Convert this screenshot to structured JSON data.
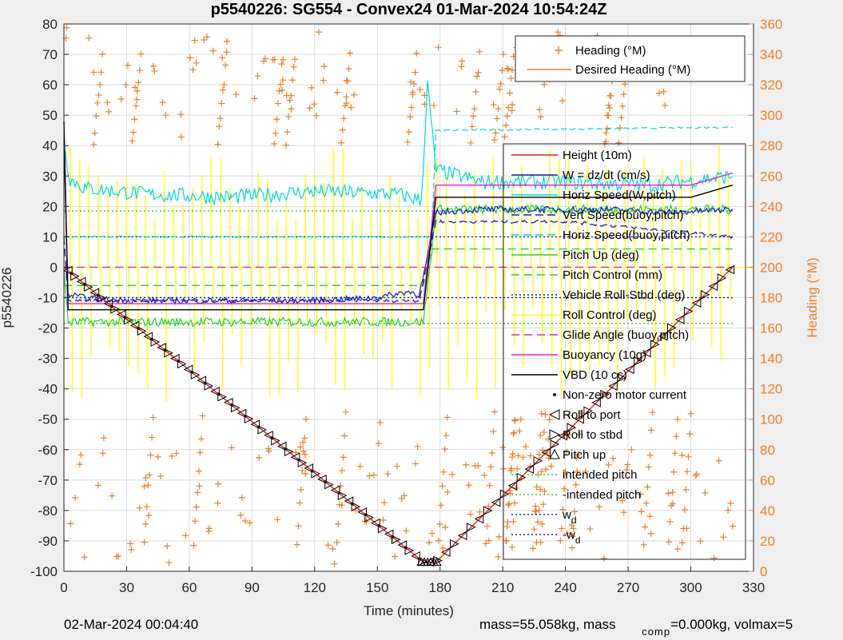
{
  "colors": {
    "background": "#efefef",
    "plot_background": "#ffffff",
    "grid": "#dcdcdc",
    "heading_axis": "#f07f28",
    "height": "#e02020",
    "w": "#1a1ad0",
    "horiz_speed": "#00d8d8",
    "pitch": "#2ad02a",
    "roll": "#ffff22",
    "glide": "#e020e0",
    "vbd": "#000000"
  },
  "chart_data": {
    "type": "line",
    "title": "p5540226: SG554 - Convex24 01-Mar-2024 10:54:24Z",
    "xlabel": "Time (minutes)",
    "ylabel": "p5540226",
    "y2label": "Heading (°M)",
    "xlim": [
      0,
      330
    ],
    "ylim": [
      -100,
      80
    ],
    "y2lim": [
      0,
      360
    ],
    "xticks": [
      "0",
      "30",
      "60",
      "90",
      "120",
      "150",
      "180",
      "210",
      "240",
      "270",
      "300",
      "330"
    ],
    "yticks": [
      "80",
      "70",
      "60",
      "50",
      "40",
      "30",
      "20",
      "10",
      "0",
      "-10",
      "-20",
      "-30",
      "-40",
      "-50",
      "-60",
      "-70",
      "-80",
      "-90",
      "-100"
    ],
    "y2ticks": [
      "360",
      "340",
      "320",
      "300",
      "280",
      "260",
      "240",
      "220",
      "200",
      "180",
      "160",
      "140",
      "120",
      "100",
      "80",
      "60",
      "40",
      "20",
      "0"
    ],
    "grid": true,
    "legend_heading": {
      "placement": "top-right",
      "entries": [
        "Heading (°M)",
        "Desired Heading (°M)"
      ]
    },
    "legend_main": {
      "placement": "right",
      "entries": [
        "Height (10m)",
        "W = dz/dt (cm/s)",
        "Horiz Speed(W,pitch)",
        "Vert Speed(buoy,pitch)",
        "Horiz Speed(buoy,pitch)",
        "Pitch Up (deg)",
        "Pitch Control (mm)",
        "Vehicle Roll-Stbd (deg)",
        "Roll Control (deg)",
        "Glide Angle (buoy,pitch)",
        "Buoyancy (10g)",
        "VBD (10 cc)",
        "Non-zero motor current",
        "Roll to port",
        "Roll to stbd",
        "Pitch up",
        "intended pitch",
        "-intended pitch",
        "w_d",
        "-w_d"
      ]
    },
    "series": [
      {
        "name": "Height (10m)",
        "x": [
          0,
          172,
          178,
          320
        ],
        "y": [
          0,
          -97,
          -97,
          0
        ]
      },
      {
        "name": "W = dz/dt (cm/s)",
        "x": [
          0,
          2,
          10,
          30,
          60,
          90,
          120,
          150,
          165,
          170,
          173,
          178,
          200,
          230,
          260,
          290,
          320
        ],
        "y": [
          40,
          -9,
          -10,
          -11,
          -11,
          -11,
          -11,
          -10,
          -8,
          -9,
          0,
          18,
          19,
          19,
          19,
          18,
          19
        ]
      },
      {
        "name": "Horiz Speed(W,pitch)",
        "x": [
          0,
          3,
          10,
          40,
          80,
          120,
          160,
          171,
          174,
          178,
          200,
          240,
          280,
          320
        ],
        "y": [
          40,
          29,
          26,
          24,
          23,
          25,
          24,
          22,
          60,
          32,
          28,
          28,
          27,
          30
        ]
      },
      {
        "name": "Vert Speed(buoy,pitch)",
        "x": [
          0,
          2,
          60,
          120,
          170,
          175,
          178,
          240,
          320
        ],
        "y": [
          10,
          -11,
          -11,
          -11,
          -11,
          5,
          15,
          15,
          10
        ]
      },
      {
        "name": "Horiz Speed(buoy,pitch)",
        "x": [
          0,
          176,
          178,
          320
        ],
        "y": [
          10,
          10,
          45,
          46
        ]
      },
      {
        "name": "Pitch Up (deg)",
        "x": [
          0,
          2,
          60,
          120,
          172,
          176,
          178,
          240,
          320
        ],
        "y": [
          0,
          -18,
          -18,
          -18,
          -18,
          5,
          19,
          19,
          19
        ]
      },
      {
        "name": "Pitch Control (mm)",
        "x": [
          0,
          172,
          176,
          320
        ],
        "y": [
          -6,
          -6,
          6,
          6
        ]
      },
      {
        "name": "Vehicle Roll-Stbd (deg)",
        "x": [
          0,
          320
        ],
        "y": [
          -10,
          -10
        ]
      },
      {
        "name": "Roll Control (deg)",
        "x": [
          0,
          320
        ],
        "y": [
          0,
          0
        ]
      },
      {
        "name": "Glide Angle (buoy,pitch)",
        "x": [
          0,
          172,
          176,
          320
        ],
        "y": [
          0,
          0,
          0,
          0
        ]
      },
      {
        "name": "Buoyancy (10g)",
        "x": [
          0,
          2,
          172,
          178,
          300,
          320
        ],
        "y": [
          48,
          -12,
          -12,
          27,
          27,
          31
        ]
      },
      {
        "name": "VBD (10 cc)",
        "x": [
          0,
          2,
          172,
          178,
          300,
          320
        ],
        "y": [
          48,
          -14,
          -14,
          23,
          23,
          27
        ]
      },
      {
        "name": "intended pitch",
        "x": [
          0,
          320
        ],
        "y": [
          18.5,
          18.5
        ]
      },
      {
        "name": "-intended pitch",
        "x": [
          0,
          320
        ],
        "y": [
          -18.5,
          -18.5
        ]
      },
      {
        "name": "w_d",
        "x": [
          0,
          320
        ],
        "y": [
          10,
          10
        ]
      },
      {
        "name": "-w_d",
        "x": [
          0,
          320
        ],
        "y": [
          -10,
          -10
        ]
      }
    ]
  },
  "footer": {
    "left": "02-Mar-2024 00:04:40",
    "right_pre": "mass=55.058kg, mass",
    "right_sub": "comp",
    "right_post": "=0.000kg, volmax=5"
  }
}
